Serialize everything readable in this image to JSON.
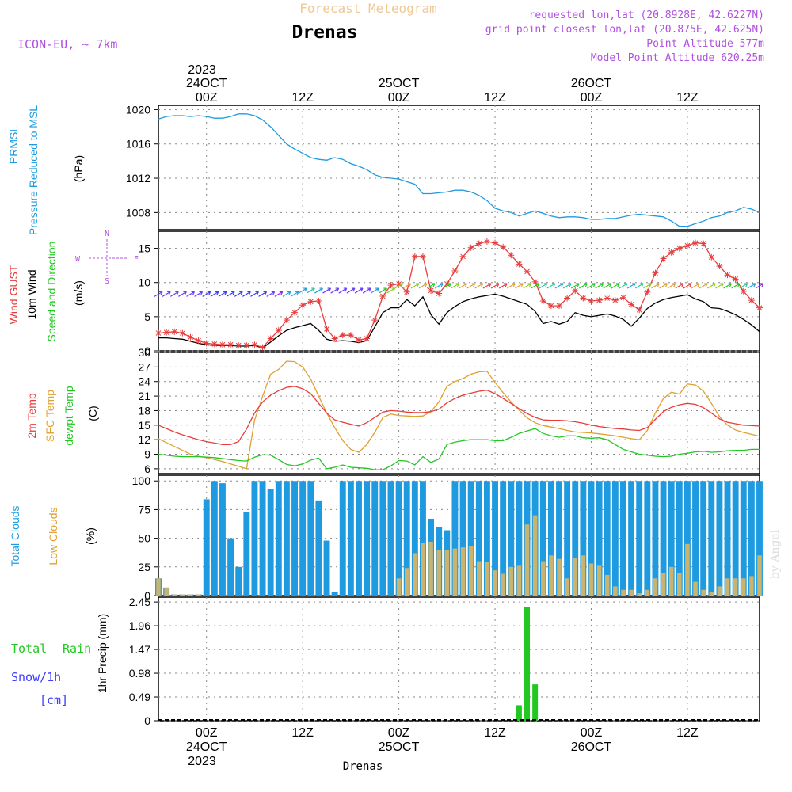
{
  "header": {
    "title": "Forecast Meteogram",
    "location": "Drenas",
    "model": "ICON-EU, ~ 7km",
    "requested": "requested lon,lat (20.8928E, 42.6227N)",
    "grid_point": "grid point closest lon,lat (20.875E, 42.625N)",
    "point_altitude": "Point Altitude 577m",
    "model_altitude": "Model Point Altitude 620.25m",
    "watermark": "by Angel",
    "footer_location": "Drenas"
  },
  "time_axis": {
    "top_year": "2023",
    "ticks": [
      "00Z",
      "12Z",
      "00Z",
      "12Z",
      "00Z",
      "12Z"
    ],
    "dates": [
      "24OCT",
      "25OCT",
      "26OCT"
    ],
    "bottom_year": "2023"
  },
  "panel_labels": {
    "pressure": [
      "PRMSL",
      "Pressure Reduced to MSL",
      "(hPa)"
    ],
    "wind": [
      "Wind GUST",
      "10m Wind",
      "Speed and Direction",
      "(m/s)"
    ],
    "compass": {
      "n": "N",
      "s": "S",
      "w": "W",
      "e": "E"
    },
    "temp": [
      "2m Temp",
      "SFC Temp",
      "dewpt Temp",
      "(C)"
    ],
    "clouds": [
      "Total Clouds",
      "Low Clouds",
      "(%)"
    ],
    "precip": [
      "Total",
      "Rain",
      "Snow/1h",
      "[cm]",
      "1hr Precip (mm)"
    ]
  },
  "colors": {
    "pressure": "#1e9be0",
    "gust": "#e83c3c",
    "wind": "#000000",
    "sfc_temp": "#e0a030",
    "dew": "#22c822",
    "total_clouds": "#1e9be0",
    "low_clouds": "#c8b46e",
    "rain": "#22c822",
    "snow": "#3c3cff",
    "header_title": "#f0c896",
    "header_meta": "#b050e0"
  },
  "chart_data": [
    {
      "type": "line",
      "name": "pressure",
      "x_hours": [
        -6,
        -5,
        -4,
        -3,
        -2,
        -1,
        0,
        1,
        2,
        3,
        4,
        5,
        6,
        7,
        8,
        9,
        10,
        11,
        12,
        13,
        14,
        15,
        16,
        17,
        18,
        19,
        20,
        21,
        22,
        23,
        24,
        25,
        26,
        27,
        28,
        29,
        30,
        31,
        32,
        33,
        34,
        35,
        36,
        37,
        38,
        39,
        40,
        41,
        42,
        43,
        44,
        45,
        46,
        47,
        48,
        49,
        50,
        51,
        52,
        53,
        54,
        55,
        56,
        57,
        58,
        59,
        60,
        61,
        62,
        63,
        64,
        65,
        66,
        67,
        68,
        69
      ],
      "values": [
        1018.9,
        1019.2,
        1019.3,
        1019.3,
        1019.2,
        1019.3,
        1019.2,
        1019.0,
        1019.0,
        1019.2,
        1019.5,
        1019.5,
        1019.3,
        1018.8,
        1018.0,
        1017.0,
        1016.0,
        1015.4,
        1014.9,
        1014.4,
        1014.2,
        1014.1,
        1014.4,
        1014.2,
        1013.7,
        1013.4,
        1013.0,
        1012.4,
        1012.1,
        1012.0,
        1011.9,
        1011.6,
        1011.3,
        1010.2,
        1010.2,
        1010.3,
        1010.4,
        1010.6,
        1010.6,
        1010.4,
        1010.0,
        1009.4,
        1008.5,
        1008.2,
        1008.0,
        1007.6,
        1007.9,
        1008.2,
        1007.9,
        1007.6,
        1007.4,
        1007.5,
        1007.5,
        1007.4,
        1007.2,
        1007.2,
        1007.3,
        1007.3,
        1007.5,
        1007.7,
        1007.8,
        1007.7,
        1007.6,
        1007.5,
        1007.0,
        1006.4,
        1006.4,
        1006.7,
        1007.0,
        1007.4,
        1007.6,
        1008.0,
        1008.2,
        1008.6,
        1008.4,
        1008.0
      ],
      "ylim": [
        1006,
        1020.5
      ],
      "yticks": [
        1008,
        1012,
        1016,
        1020
      ]
    },
    {
      "type": "line",
      "name": "wind",
      "x_hours": [
        -6,
        -5,
        -4,
        -3,
        -2,
        -1,
        0,
        1,
        2,
        3,
        4,
        5,
        6,
        7,
        8,
        9,
        10,
        11,
        12,
        13,
        14,
        15,
        16,
        17,
        18,
        19,
        20,
        21,
        22,
        23,
        24,
        25,
        26,
        27,
        28,
        29,
        30,
        31,
        32,
        33,
        34,
        35,
        36,
        37,
        38,
        39,
        40,
        41,
        42,
        43,
        44,
        45,
        46,
        47,
        48,
        49,
        50,
        51,
        52,
        53,
        54,
        55,
        56,
        57,
        58,
        59,
        60,
        61,
        62,
        63,
        64,
        65,
        66,
        67,
        68,
        69
      ],
      "gust": [
        2.6,
        2.7,
        2.8,
        2.6,
        2.0,
        1.5,
        1.1,
        1.0,
        0.9,
        0.9,
        0.8,
        0.8,
        0.9,
        0.5,
        1.8,
        3.0,
        4.5,
        5.6,
        6.7,
        7.2,
        7.3,
        3.2,
        1.8,
        2.3,
        2.3,
        1.6,
        1.8,
        4.5,
        8.0,
        9.6,
        9.8,
        8.6,
        13.8,
        13.8,
        8.8,
        8.4,
        9.8,
        11.7,
        13.8,
        15.1,
        15.7,
        16.0,
        15.8,
        15.2,
        14.0,
        12.7,
        11.6,
        10.1,
        7.3,
        6.6,
        6.6,
        7.7,
        8.8,
        7.7,
        7.3,
        7.4,
        7.7,
        7.4,
        7.8,
        6.8,
        6.0,
        8.6,
        11.4,
        13.5,
        14.4,
        15.0,
        15.4,
        15.8,
        15.7,
        13.7,
        12.4,
        11.1,
        10.5,
        8.7,
        7.4,
        6.3
      ],
      "wind": [
        1.9,
        1.9,
        1.8,
        1.7,
        1.4,
        1.1,
        0.9,
        0.8,
        0.8,
        0.8,
        0.7,
        0.7,
        0.8,
        0.4,
        1.3,
        2.2,
        3.0,
        3.4,
        3.7,
        4.0,
        3.0,
        1.7,
        1.4,
        1.5,
        1.4,
        1.2,
        1.5,
        3.5,
        5.6,
        6.3,
        6.3,
        7.5,
        6.6,
        7.9,
        5.3,
        3.9,
        5.6,
        6.5,
        7.2,
        7.6,
        7.9,
        8.1,
        8.3,
        8.0,
        7.6,
        7.2,
        6.8,
        5.8,
        4.0,
        4.3,
        3.9,
        4.3,
        5.6,
        5.2,
        5.0,
        5.2,
        5.4,
        5.1,
        4.6,
        3.6,
        4.8,
        6.2,
        7.0,
        7.5,
        7.8,
        8.0,
        8.2,
        7.6,
        7.2,
        6.3,
        6.2,
        5.8,
        5.3,
        4.6,
        3.8,
        2.8
      ],
      "ylim": [
        0,
        17.5
      ],
      "yticks": [
        0,
        5,
        10,
        15
      ]
    },
    {
      "type": "line",
      "name": "temperature",
      "x_hours": [
        -6,
        -5,
        -4,
        -3,
        -2,
        -1,
        0,
        1,
        2,
        3,
        4,
        5,
        6,
        7,
        8,
        9,
        10,
        11,
        12,
        13,
        14,
        15,
        16,
        17,
        18,
        19,
        20,
        21,
        22,
        23,
        24,
        25,
        26,
        27,
        28,
        29,
        30,
        31,
        32,
        33,
        34,
        35,
        36,
        37,
        38,
        39,
        40,
        41,
        42,
        43,
        44,
        45,
        46,
        47,
        48,
        49,
        50,
        51,
        52,
        53,
        54,
        55,
        56,
        57,
        58,
        59,
        60,
        61,
        62,
        63,
        64,
        65,
        66,
        67,
        68,
        69
      ],
      "t2m": [
        15.0,
        14.3,
        13.6,
        13.0,
        12.5,
        12.0,
        11.6,
        11.3,
        11.0,
        11.0,
        11.6,
        14.2,
        17.5,
        19.8,
        21.2,
        22.1,
        22.8,
        23.0,
        22.5,
        21.5,
        19.5,
        17.5,
        16.1,
        15.6,
        15.2,
        14.8,
        15.5,
        16.6,
        17.7,
        18.0,
        17.9,
        17.7,
        17.6,
        17.6,
        17.8,
        18.3,
        19.6,
        20.5,
        21.2,
        21.6,
        22.0,
        22.2,
        21.5,
        20.5,
        19.5,
        18.4,
        17.4,
        16.6,
        16.1,
        16.0,
        16.0,
        15.9,
        15.7,
        15.4,
        15.0,
        14.7,
        14.5,
        14.3,
        14.2,
        14.0,
        13.9,
        14.5,
        16.2,
        17.8,
        18.7,
        19.2,
        19.5,
        19.3,
        18.6,
        17.5,
        16.3,
        15.6,
        15.3,
        15.0,
        14.9,
        14.8
      ],
      "sfc": [
        12.2,
        11.4,
        10.6,
        9.8,
        9.0,
        8.6,
        8.3,
        7.9,
        7.5,
        7.0,
        6.5,
        6.0,
        16.0,
        21.0,
        25.5,
        26.5,
        28.2,
        28.1,
        27.0,
        24.5,
        21.0,
        17.5,
        14.5,
        11.8,
        10.0,
        9.4,
        11.0,
        13.5,
        16.6,
        17.3,
        17.0,
        16.9,
        16.8,
        16.9,
        17.8,
        19.8,
        23.0,
        24.0,
        24.6,
        25.5,
        26.0,
        26.1,
        23.8,
        21.7,
        19.8,
        18.1,
        16.5,
        15.5,
        14.9,
        14.6,
        14.3,
        13.9,
        13.6,
        13.5,
        13.4,
        13.2,
        13.0,
        12.8,
        12.5,
        12.2,
        12.0,
        13.9,
        17.5,
        20.5,
        21.8,
        21.4,
        23.5,
        23.3,
        22.0,
        19.5,
        16.8,
        15.0,
        14.0,
        13.5,
        13.1,
        12.7
      ],
      "dew": [
        9.0,
        8.8,
        8.6,
        8.5,
        8.5,
        8.5,
        8.4,
        8.3,
        8.1,
        7.9,
        7.7,
        7.6,
        8.4,
        8.9,
        8.8,
        7.9,
        6.9,
        6.6,
        7.0,
        7.8,
        8.2,
        6.0,
        6.3,
        6.8,
        6.3,
        6.2,
        6.1,
        5.8,
        5.8,
        6.6,
        7.7,
        7.6,
        6.8,
        8.5,
        7.3,
        8.0,
        11.0,
        11.5,
        11.8,
        12.0,
        12.0,
        12.0,
        11.8,
        11.8,
        12.5,
        13.3,
        13.8,
        14.3,
        13.3,
        12.8,
        12.5,
        12.8,
        12.8,
        12.4,
        12.3,
        12.4,
        12.0,
        11.0,
        10.0,
        9.5,
        9.0,
        8.8,
        8.6,
        8.5,
        8.6,
        9.0,
        9.2,
        9.5,
        9.6,
        9.4,
        9.5,
        9.7,
        9.8,
        9.8,
        10.0,
        10.0
      ],
      "ylim": [
        5,
        30
      ],
      "yticks": [
        6,
        9,
        12,
        15,
        18,
        21,
        24,
        27,
        30
      ]
    },
    {
      "type": "bar",
      "name": "clouds",
      "x_hours": [
        -6,
        -5,
        -4,
        -3,
        -2,
        -1,
        0,
        1,
        2,
        3,
        4,
        5,
        6,
        7,
        8,
        9,
        10,
        11,
        12,
        13,
        14,
        15,
        16,
        17,
        18,
        19,
        20,
        21,
        22,
        23,
        24,
        25,
        26,
        27,
        28,
        29,
        30,
        31,
        32,
        33,
        34,
        35,
        36,
        37,
        38,
        39,
        40,
        41,
        42,
        43,
        44,
        45,
        46,
        47,
        48,
        49,
        50,
        51,
        52,
        53,
        54,
        55,
        56,
        57,
        58,
        59,
        60,
        61,
        62,
        63,
        64,
        65,
        66,
        67,
        68,
        69
      ],
      "total": [
        15,
        7,
        1,
        1,
        1,
        1,
        84,
        100,
        98,
        50,
        25,
        73,
        100,
        100,
        93,
        100,
        100,
        100,
        100,
        100,
        83,
        48,
        3,
        100,
        100,
        100,
        100,
        100,
        100,
        100,
        100,
        100,
        100,
        100,
        67,
        60,
        57,
        100,
        100,
        100,
        100,
        100,
        100,
        100,
        100,
        100,
        100,
        100,
        100,
        100,
        100,
        100,
        100,
        100,
        100,
        100,
        100,
        100,
        100,
        100,
        100,
        100,
        100,
        100,
        100,
        100,
        100,
        100,
        100,
        100,
        100,
        100,
        100,
        100,
        100,
        100
      ],
      "low": [
        15,
        7,
        1,
        1,
        1,
        1,
        0,
        0,
        0,
        0,
        0,
        0,
        0,
        0,
        0,
        0,
        0,
        0,
        0,
        0,
        0,
        0,
        0,
        0,
        0,
        0,
        0,
        0,
        0,
        0,
        15,
        24,
        37,
        46,
        47,
        40,
        40,
        41,
        42,
        43,
        30,
        29,
        22,
        19,
        25,
        26,
        62,
        70,
        30,
        35,
        32,
        15,
        33,
        35,
        28,
        26,
        18,
        8,
        5,
        5,
        2,
        5,
        15,
        20,
        25,
        20,
        45,
        12,
        5,
        3,
        8,
        15,
        15,
        15,
        17,
        35
      ],
      "ylim": [
        0,
        105
      ],
      "yticks": [
        0,
        25,
        50,
        75,
        100
      ]
    },
    {
      "type": "bar",
      "name": "precipitation",
      "x_hours": [
        39,
        40,
        41
      ],
      "values": [
        0.32,
        2.35,
        0.75
      ],
      "ylim": [
        0,
        2.55
      ],
      "yticks": [
        "0",
        "0.49",
        "0.98",
        "1.47",
        "1.96",
        "2.45"
      ]
    }
  ]
}
